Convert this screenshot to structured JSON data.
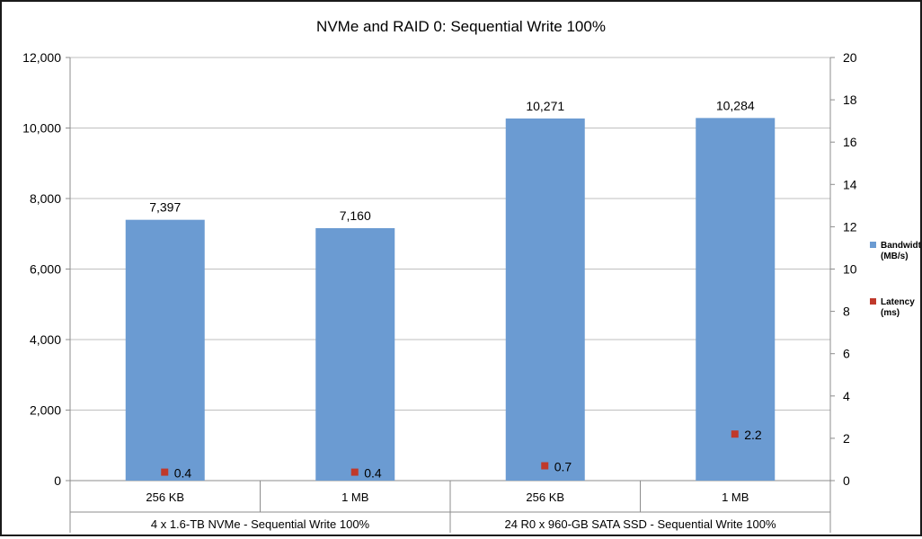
{
  "chart_data": {
    "type": "bar",
    "title": "NVMe and RAID 0: Sequential Write 100%",
    "groups": [
      {
        "label": "4 x 1.6-TB NVMe - Sequential Write 100%",
        "categories": [
          "256 KB",
          "1 MB"
        ]
      },
      {
        "label": "24 R0 x 960-GB SATA SSD - Sequential Write 100%",
        "categories": [
          "256 KB",
          "1 MB"
        ]
      }
    ],
    "categories": [
      "256 KB",
      "1 MB",
      "256 KB",
      "1 MB"
    ],
    "series": [
      {
        "name": "Bandwidth (MB/s)",
        "legend_lines": [
          "Bandwidth",
          "(MB/s)"
        ],
        "axis": "left",
        "kind": "bar",
        "color": "#6b9bd2",
        "values": [
          7397,
          7160,
          10271,
          10284
        ],
        "labels": [
          "7,397",
          "7,160",
          "10,271",
          "10,284"
        ]
      },
      {
        "name": "Latency (ms)",
        "legend_lines": [
          "Latency",
          "(ms)"
        ],
        "axis": "right",
        "kind": "marker",
        "color": "#c0392b",
        "values": [
          0.4,
          0.4,
          0.7,
          2.2
        ],
        "labels": [
          "0.4",
          "0.4",
          "0.7",
          "2.2"
        ]
      }
    ],
    "y_left": {
      "min": 0,
      "max": 12000,
      "ticks": [
        "0",
        "2,000",
        "4,000",
        "6,000",
        "8,000",
        "10,000",
        "12,000"
      ]
    },
    "y_right": {
      "min": 0,
      "max": 20,
      "ticks": [
        "0",
        "2",
        "4",
        "6",
        "8",
        "10",
        "12",
        "14",
        "16",
        "18",
        "20"
      ]
    },
    "grid": true,
    "legend_position": "right"
  }
}
